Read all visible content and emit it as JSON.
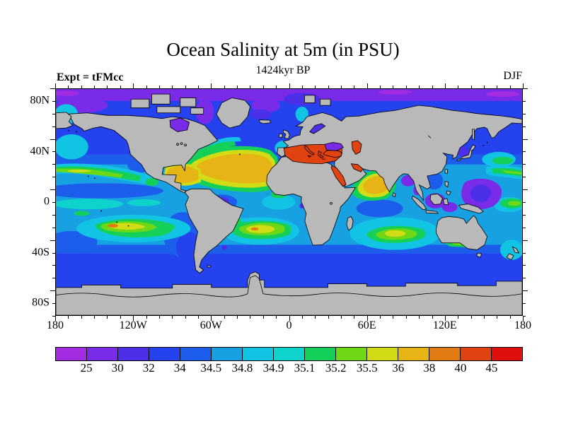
{
  "header": {
    "title": "Ocean Salinity at 5m (in PSU)",
    "subtitle": "1424kyr BP",
    "experiment_label": "Expt = tFMcc",
    "season_label": "DJF"
  },
  "axes": {
    "x_ticks": [
      "180",
      "120W",
      "60W",
      "0",
      "60E",
      "120E",
      "180"
    ],
    "y_ticks": [
      "80N",
      "40N",
      "0",
      "40S",
      "80S"
    ]
  },
  "colorbar": {
    "labels": [
      "25",
      "30",
      "32",
      "34",
      "34.5",
      "34.8",
      "34.9",
      "35.1",
      "35.2",
      "35.5",
      "36",
      "38",
      "40",
      "45"
    ]
  },
  "chart_data": {
    "type": "heatmap",
    "title": "Ocean Salinity at 5m (in PSU)",
    "subtitle": "1424kyr BP",
    "experiment": "tFMcc",
    "season": "DJF",
    "variable": "ocean salinity",
    "depth": "5m",
    "units": "PSU",
    "projection": "equirectangular world map",
    "lon_range": [
      -180,
      180
    ],
    "lat_range": [
      -90,
      90
    ],
    "x_tick_labels": [
      "180",
      "120W",
      "60W",
      "0",
      "60E",
      "120E",
      "180"
    ],
    "y_tick_labels": [
      "80N",
      "40N",
      "0",
      "40S",
      "80S"
    ],
    "contour_levels": [
      25,
      30,
      32,
      34,
      34.5,
      34.8,
      34.9,
      35.1,
      35.2,
      35.5,
      36,
      38,
      40,
      45
    ],
    "palette": [
      "#A32BE1",
      "#7A2BE8",
      "#4B2FE9",
      "#2442EE",
      "#1D5DEB",
      "#17A0E2",
      "#12C4E4",
      "#0ED2CC",
      "#15D058",
      "#6ED816",
      "#D2DC16",
      "#E6B414",
      "#E27C12",
      "#E04210",
      "#DE0F0C"
    ],
    "land_color": "#B9B9B9",
    "regions": [
      {
        "region": "Arctic Ocean",
        "salinity_psu": "25-32"
      },
      {
        "region": "Hudson Bay",
        "salinity_psu": "25-30"
      },
      {
        "region": "Baffin Bay / Greenland Sea",
        "salinity_psu": "30-32"
      },
      {
        "region": "Subpolar North Atlantic and North Pacific",
        "salinity_psu": "32-34"
      },
      {
        "region": "North Atlantic subtropical gyre and Caribbean",
        "salinity_psu": "36-38"
      },
      {
        "region": "Mediterranean Sea",
        "salinity_psu": "40-45+"
      },
      {
        "region": "Black Sea",
        "salinity_psu": "25-30"
      },
      {
        "region": "Caspian Sea",
        "salinity_psu": "40-45"
      },
      {
        "region": "Red Sea and Persian Gulf",
        "salinity_psu": "40-45+"
      },
      {
        "region": "Arabian Sea",
        "salinity_psu": "36-38"
      },
      {
        "region": "Bay of Bengal",
        "salinity_psu": "30-32"
      },
      {
        "region": "Western Pacific warm pool / Indonesian seas",
        "salinity_psu": "30-32"
      },
      {
        "region": "North Pacific subtropical band",
        "salinity_psu": "35.1-36"
      },
      {
        "region": "South Pacific subtropical gyre",
        "salinity_psu": "35.5-40"
      },
      {
        "region": "South Atlantic subtropical gyre",
        "salinity_psu": "35.5-40"
      },
      {
        "region": "South Indian subtropical gyre",
        "salinity_psu": "35.5-36"
      },
      {
        "region": "Equatorial Pacific",
        "salinity_psu": "34.9-35.2"
      },
      {
        "region": "Southern Ocean",
        "salinity_psu": "32-34"
      },
      {
        "region": "Antarctica and land/ice mask",
        "salinity_psu": "masked gray"
      }
    ]
  }
}
